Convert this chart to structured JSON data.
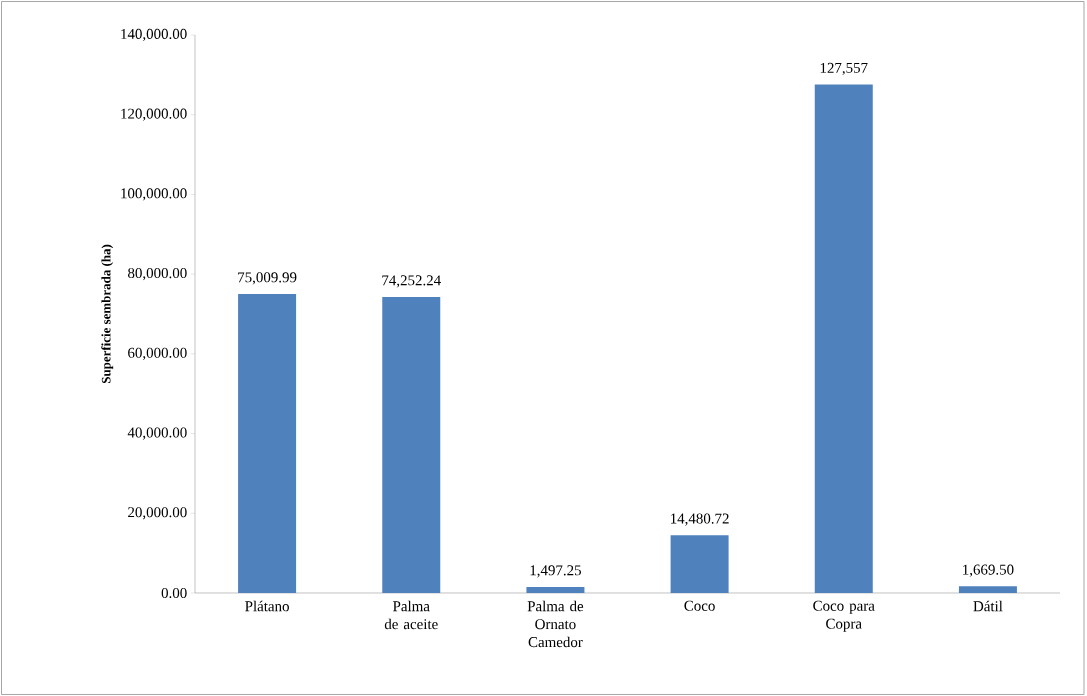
{
  "chart_data": {
    "type": "bar",
    "ylabel": "Superficie sembrada (ha)",
    "categories": [
      "Plátano",
      "Palma de aceite",
      "Palma de Ornato Camedor",
      "Coco",
      "Coco para Copra",
      "Dátil"
    ],
    "values": [
      75009.99,
      74252.24,
      1497.25,
      14480.72,
      127557,
      1669.5
    ],
    "value_labels": [
      "75,009.99",
      "74,252.24",
      "1,497.25",
      "14,480.72",
      "127,557",
      "1,669.50"
    ],
    "color": "#4f81bd",
    "ylim": [
      0,
      140000
    ],
    "yticks": [
      {
        "value": 0,
        "label": "0.00"
      },
      {
        "value": 20000,
        "label": "20,000.00"
      },
      {
        "value": 40000,
        "label": "40,000.00"
      },
      {
        "value": 60000,
        "label": "60,000.00"
      },
      {
        "value": 80000,
        "label": "80,000.00"
      },
      {
        "value": 100000,
        "label": "100,000.00"
      },
      {
        "value": 120000,
        "label": "120,000.00"
      },
      {
        "value": 140000,
        "label": "140,000.00"
      }
    ],
    "grid": false
  }
}
